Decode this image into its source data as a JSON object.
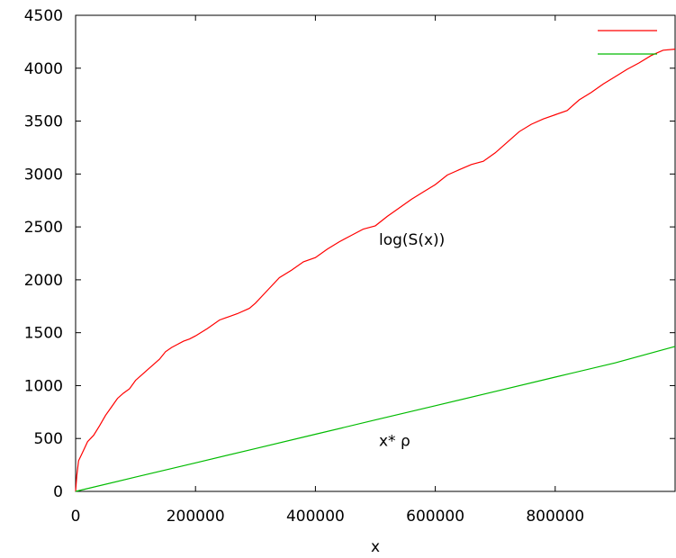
{
  "chart_data": {
    "type": "line",
    "title": "",
    "xlabel": "x",
    "ylabel": "",
    "xlim": [
      0,
      1000000
    ],
    "ylim": [
      0,
      4500
    ],
    "xticks": [
      0,
      200000,
      400000,
      600000,
      800000
    ],
    "yticks": [
      0,
      500,
      1000,
      1500,
      2000,
      2500,
      3000,
      3500,
      4000,
      4500
    ],
    "grid": false,
    "legend": "top-right",
    "annotations": [
      {
        "text": "log(S(x))",
        "x": 500000,
        "y": 2380
      },
      {
        "text": "x* ρ",
        "x": 500000,
        "y": 480
      }
    ],
    "series": [
      {
        "name": "",
        "color": "#ff0000",
        "x": [
          0,
          2000,
          5000,
          10000,
          20000,
          30000,
          40000,
          50000,
          60000,
          70000,
          80000,
          90000,
          100000,
          110000,
          120000,
          130000,
          140000,
          150000,
          160000,
          170000,
          180000,
          190000,
          200000,
          220000,
          240000,
          250000,
          270000,
          290000,
          300000,
          320000,
          340000,
          360000,
          380000,
          400000,
          420000,
          440000,
          460000,
          480000,
          500000,
          520000,
          540000,
          560000,
          580000,
          600000,
          620000,
          640000,
          660000,
          680000,
          700000,
          720000,
          740000,
          760000,
          780000,
          800000,
          820000,
          840000,
          860000,
          880000,
          900000,
          920000,
          940000,
          960000,
          980000,
          1000000
        ],
        "y": [
          0,
          150,
          290,
          350,
          470,
          530,
          620,
          720,
          800,
          880,
          930,
          970,
          1050,
          1100,
          1150,
          1200,
          1250,
          1320,
          1360,
          1390,
          1420,
          1440,
          1470,
          1540,
          1620,
          1640,
          1680,
          1730,
          1780,
          1900,
          2020,
          2090,
          2170,
          2210,
          2290,
          2360,
          2420,
          2480,
          2510,
          2600,
          2680,
          2760,
          2830,
          2900,
          2990,
          3040,
          3090,
          3120,
          3200,
          3300,
          3400,
          3470,
          3520,
          3560,
          3600,
          3700,
          3770,
          3850,
          3920,
          3990,
          4050,
          4120,
          4170,
          4180
        ]
      },
      {
        "name": "",
        "color": "#00bb00",
        "x": [
          0,
          100000,
          200000,
          300000,
          400000,
          500000,
          600000,
          700000,
          800000,
          900000,
          1000000
        ],
        "y": [
          0,
          135,
          270,
          405,
          540,
          675,
          810,
          945,
          1080,
          1215,
          1370
        ]
      }
    ]
  }
}
